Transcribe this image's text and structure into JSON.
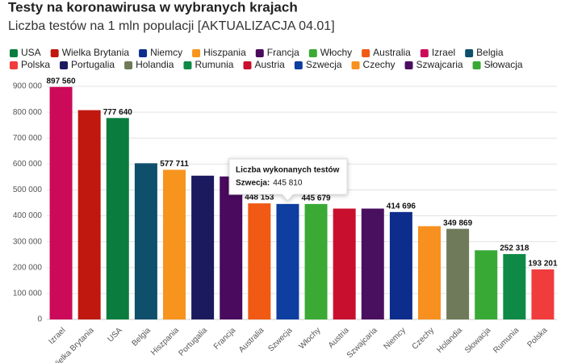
{
  "chart_data": {
    "type": "bar",
    "title": "Testy na koronawirusa w wybranych krajach",
    "subtitle": "Liczba testów na 1 mln populacji [AKTUALIZACJA 04.01]",
    "categories": [
      "Izrael",
      "Wielka Brytania",
      "USA",
      "Belgia",
      "Hiszpania",
      "Portugalia",
      "Francja",
      "Australia",
      "Szwecja",
      "Włochy",
      "Austria",
      "Szwajcaria",
      "Niemcy",
      "Czechy",
      "Holandia",
      "Słowacja",
      "Rumunia",
      "Polska"
    ],
    "values": [
      897560,
      808000,
      777640,
      603000,
      577711,
      555000,
      552000,
      448153,
      445810,
      445679,
      428000,
      428000,
      414696,
      360000,
      349869,
      267000,
      252318,
      193201
    ],
    "value_labels": [
      "897 560",
      null,
      "777 640",
      null,
      "577 711",
      null,
      null,
      "448 153",
      null,
      "445 679",
      null,
      null,
      "414 696",
      null,
      "349 869",
      null,
      "252 318",
      "193 201"
    ],
    "colors": [
      "#cc0a5a",
      "#c0180f",
      "#0a7d3e",
      "#0e4f6b",
      "#f7941d",
      "#1b1a5e",
      "#4a0a5e",
      "#f05a14",
      "#0d3ea0",
      "#3aaa35",
      "#c8102e",
      "#4a1060",
      "#0d2d8c",
      "#f7901e",
      "#6f7a5a",
      "#39a935",
      "#0e8a46",
      "#f03c3c"
    ],
    "legend": [
      {
        "name": "USA",
        "color": "#0a7d3e"
      },
      {
        "name": "Wielka Brytania",
        "color": "#c0180f"
      },
      {
        "name": "Niemcy",
        "color": "#0d2d8c"
      },
      {
        "name": "Hiszpania",
        "color": "#f7941d"
      },
      {
        "name": "Francja",
        "color": "#4a0a5e"
      },
      {
        "name": "Włochy",
        "color": "#3aaa35"
      },
      {
        "name": "Australia",
        "color": "#f05a14"
      },
      {
        "name": "Izrael",
        "color": "#cc0a5a"
      },
      {
        "name": "Belgia",
        "color": "#0e4f6b"
      },
      {
        "name": "Polska",
        "color": "#f03c3c"
      },
      {
        "name": "Portugalia",
        "color": "#1b1a5e"
      },
      {
        "name": "Holandia",
        "color": "#6f7a5a"
      },
      {
        "name": "Rumunia",
        "color": "#0e8a46"
      },
      {
        "name": "Austria",
        "color": "#c8102e"
      },
      {
        "name": "Szwecja",
        "color": "#0d3ea0"
      },
      {
        "name": "Czechy",
        "color": "#f7901e"
      },
      {
        "name": "Szwajcaria",
        "color": "#4a1060"
      },
      {
        "name": "Słowacja",
        "color": "#39a935"
      }
    ],
    "ylim": [
      0,
      900000
    ],
    "yticks": [
      0,
      {
        "value": 100000,
        "label": "100 000"
      },
      {
        "value": 200000,
        "label": "200 000"
      },
      {
        "value": 300000,
        "label": "300 000"
      },
      {
        "value": 400000,
        "label": "400 000"
      },
      {
        "value": 500000,
        "label": "500 000"
      },
      {
        "value": 600000,
        "label": "600 000"
      },
      {
        "value": 700000,
        "label": "700 000"
      },
      {
        "value": 800000,
        "label": "800 000"
      },
      {
        "value": 900000,
        "label": "900 000"
      }
    ],
    "grid": true,
    "tooltip": {
      "title": "Liczba wykonanych testów",
      "label": "Szwecja:",
      "value_label": "445 810"
    }
  }
}
